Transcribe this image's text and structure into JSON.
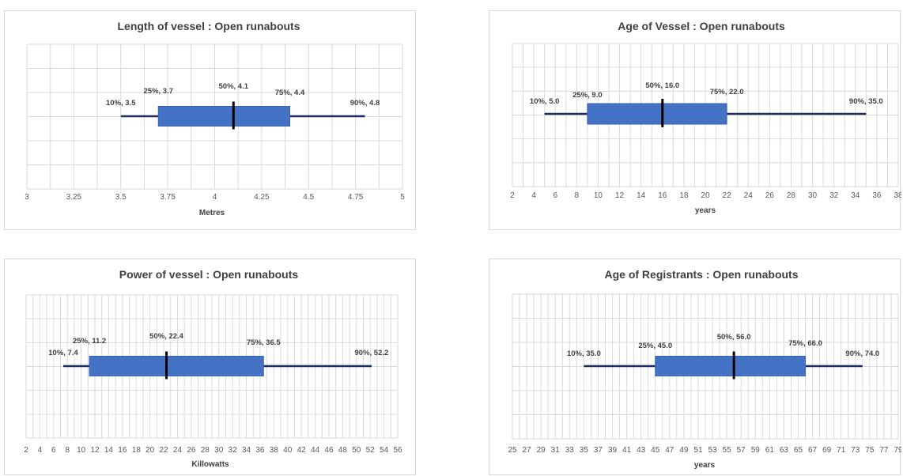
{
  "colors": {
    "box": "#4472c4",
    "whisker": "#1f2d5c",
    "median": "#000000",
    "grid": "#d9d9d9"
  },
  "chart_data": [
    {
      "type": "box",
      "title": "Length of vessel  : Open runabouts",
      "xlabel": "Metres",
      "xlim": [
        3,
        5
      ],
      "ticks": [
        "3",
        "3.25",
        "3.5",
        "3.75",
        "4",
        "4.25",
        "4.5",
        "4.75",
        "5"
      ],
      "tick_values": [
        3,
        3.25,
        3.5,
        3.75,
        4,
        4.25,
        4.5,
        4.75,
        5
      ],
      "grid": true,
      "percentiles": {
        "p10": 3.5,
        "p25": 3.7,
        "p50": 4.1,
        "p75": 4.4,
        "p90": 4.8
      },
      "labels": {
        "p10": "10%, 3.5",
        "p25": "25%, 3.7",
        "p50": "50%, 4.1",
        "p75": "75%, 4.4",
        "p90": "90%, 4.8"
      }
    },
    {
      "type": "box",
      "title": "Age of Vessel  : Open runabouts",
      "xlabel": "years",
      "xlim": [
        2,
        38
      ],
      "ticks": [
        "2",
        "4",
        "6",
        "8",
        "10",
        "12",
        "14",
        "16",
        "18",
        "20",
        "22",
        "24",
        "26",
        "28",
        "30",
        "32",
        "34",
        "36",
        "38"
      ],
      "tick_values": [
        2,
        4,
        6,
        8,
        10,
        12,
        14,
        16,
        18,
        20,
        22,
        24,
        26,
        28,
        30,
        32,
        34,
        36,
        38
      ],
      "grid": true,
      "percentiles": {
        "p10": 5.0,
        "p25": 9.0,
        "p50": 16.0,
        "p75": 22.0,
        "p90": 35.0
      },
      "labels": {
        "p10": "10%, 5.0",
        "p25": "25%, 9.0",
        "p50": "50%, 16.0",
        "p75": "75%, 22.0",
        "p90": "90%, 35.0"
      }
    },
    {
      "type": "box",
      "title": "Power of vessel   : Open runabouts",
      "xlabel": "Killowatts",
      "xlim": [
        2,
        56
      ],
      "ticks": [
        "2",
        "4",
        "6",
        "8",
        "10",
        "12",
        "14",
        "16",
        "18",
        "20",
        "22",
        "24",
        "26",
        "28",
        "30",
        "32",
        "34",
        "36",
        "38",
        "40",
        "42",
        "44",
        "46",
        "48",
        "50",
        "52",
        "54",
        "56"
      ],
      "tick_values": [
        2,
        4,
        6,
        8,
        10,
        12,
        14,
        16,
        18,
        20,
        22,
        24,
        26,
        28,
        30,
        32,
        34,
        36,
        38,
        40,
        42,
        44,
        46,
        48,
        50,
        52,
        54,
        56
      ],
      "grid": true,
      "percentiles": {
        "p10": 7.4,
        "p25": 11.2,
        "p50": 22.4,
        "p75": 36.5,
        "p90": 52.2
      },
      "labels": {
        "p10": "10%, 7.4",
        "p25": "25%, 11.2",
        "p50": "50%, 22.4",
        "p75": "75%, 36.5",
        "p90": "90%, 52.2"
      }
    },
    {
      "type": "box",
      "title": "Age of Registrants  : Open runabouts",
      "xlabel": "years",
      "xlim": [
        25,
        79
      ],
      "ticks": [
        "25",
        "27",
        "29",
        "31",
        "33",
        "35",
        "37",
        "39",
        "41",
        "43",
        "45",
        "47",
        "49",
        "51",
        "53",
        "55",
        "57",
        "59",
        "61",
        "63",
        "65",
        "67",
        "69",
        "71",
        "73",
        "75",
        "77",
        "79"
      ],
      "tick_values": [
        25,
        27,
        29,
        31,
        33,
        35,
        37,
        39,
        41,
        43,
        45,
        47,
        49,
        51,
        53,
        55,
        57,
        59,
        61,
        63,
        65,
        67,
        69,
        71,
        73,
        75,
        77,
        79
      ],
      "grid": true,
      "percentiles": {
        "p10": 35.0,
        "p25": 45.0,
        "p50": 56.0,
        "p75": 66.0,
        "p90": 74.0
      },
      "labels": {
        "p10": "10%, 35.0",
        "p25": "25%, 45.0",
        "p50": "50%, 56.0",
        "p75": "75%, 66.0",
        "p90": "90%, 74.0"
      }
    }
  ]
}
